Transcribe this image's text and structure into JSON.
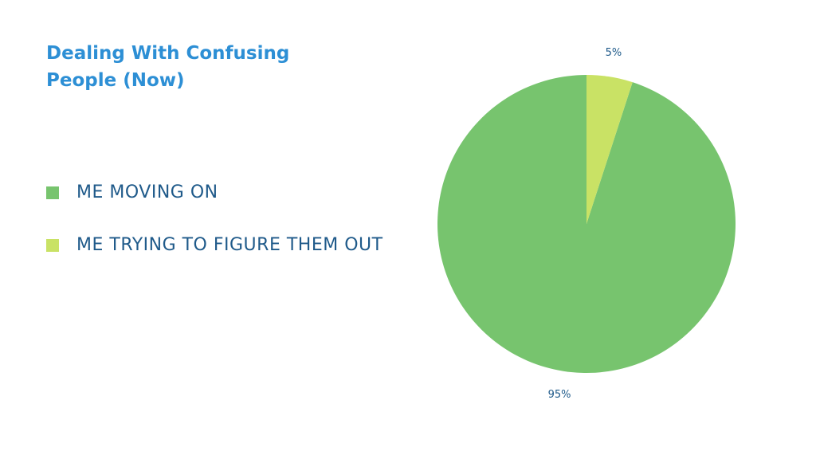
{
  "chart_data": {
    "type": "pie",
    "title": "Dealing With Confusing People (Now)",
    "categories": [
      "ME MOVING ON",
      "ME TRYING TO FIGURE THEM OUT"
    ],
    "values": [
      95,
      5
    ],
    "value_labels": [
      "95%",
      "5%"
    ],
    "colors": [
      "#77c46e",
      "#c9e265"
    ],
    "legend": "left"
  }
}
